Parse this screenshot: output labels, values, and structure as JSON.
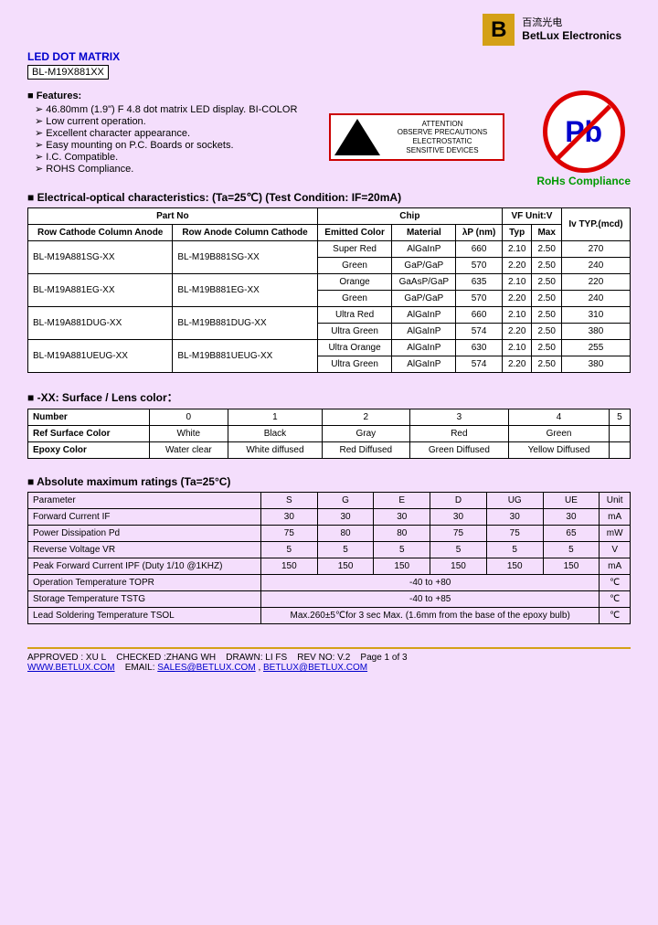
{
  "logo": {
    "cn": "百流光电",
    "en": "BetLux Electronics"
  },
  "title": "LED DOT MATRIX",
  "subtitle": "BL-M19X881XX",
  "features": {
    "label": "Features:",
    "items": [
      "46.80mm (1.9\") F 4.8 dot matrix LED display. BI-COLOR",
      "Low current operation.",
      "Excellent character appearance.",
      "Easy mounting on P.C. Boards or sockets.",
      "I.C. Compatible.",
      "ROHS Compliance."
    ]
  },
  "esd": {
    "title": "ATTENTION",
    "line1": "OBSERVE PRECAUTIONS",
    "line2": "ELECTROSTATIC",
    "line3": "SENSITIVE DEVICES"
  },
  "pb": {
    "symbol": "Pb",
    "label": "RoHs Compliance"
  },
  "table1": {
    "header": "Electrical-optical characteristics: (Ta=25℃) (Test Condition: IF=20mA)",
    "h_partno": "Part No",
    "h_chip": "Chip",
    "h_vf": "VF Unit:V",
    "h_iv": "Iv TYP.(mcd)",
    "h_rowc": "Row Cathode Column Anode",
    "h_rowa": "Row Anode Column Cathode",
    "h_emit": "Emitted Color",
    "h_mat": "Material",
    "h_lp": "λP (nm)",
    "h_typ": "Typ",
    "h_max": "Max",
    "rows": [
      {
        "p1": "BL-M19A881SG-XX",
        "p2": "BL-M19B881SG-XX",
        "c1": "Super Red",
        "m1": "AlGaInP",
        "l1": "660",
        "t1": "2.10",
        "x1": "2.50",
        "i1": "270",
        "c2": "Green",
        "m2": "GaP/GaP",
        "l2": "570",
        "t2": "2.20",
        "x2": "2.50",
        "i2": "240"
      },
      {
        "p1": "BL-M19A881EG-XX",
        "p2": "BL-M19B881EG-XX",
        "c1": "Orange",
        "m1": "GaAsP/GaP",
        "l1": "635",
        "t1": "2.10",
        "x1": "2.50",
        "i1": "220",
        "c2": "Green",
        "m2": "GaP/GaP",
        "l2": "570",
        "t2": "2.20",
        "x2": "2.50",
        "i2": "240"
      },
      {
        "p1": "BL-M19A881DUG-XX",
        "p2": "BL-M19B881DUG-XX",
        "c1": "Ultra Red",
        "m1": "AlGaInP",
        "l1": "660",
        "t1": "2.10",
        "x1": "2.50",
        "i1": "310",
        "c2": "Ultra Green",
        "m2": "AlGaInP",
        "l2": "574",
        "t2": "2.20",
        "x2": "2.50",
        "i2": "380"
      },
      {
        "p1": "BL-M19A881UEUG-XX",
        "p2": "BL-M19B881UEUG-XX",
        "c1": "Ultra Orange",
        "m1": "AlGaInP",
        "l1": "630",
        "t1": "2.10",
        "x1": "2.50",
        "i1": "255",
        "c2": "Ultra Green",
        "m2": "AlGaInP",
        "l2": "574",
        "t2": "2.20",
        "x2": "2.50",
        "i2": "380"
      }
    ]
  },
  "table2": {
    "header": "-XX: Surface / Lens color：",
    "h_num": "Number",
    "h_ref": "Ref Surface Color",
    "h_epoxy": "Epoxy Color",
    "nums": [
      "0",
      "1",
      "2",
      "3",
      "4",
      "5"
    ],
    "refs": [
      "White",
      "Black",
      "Gray",
      "Red",
      "Green",
      ""
    ],
    "epoxy": [
      "Water clear",
      "White diffused",
      "Red Diffused",
      "Green Diffused",
      "Yellow Diffused",
      ""
    ]
  },
  "table3": {
    "header": "Absolute maximum ratings (Ta=25°C)",
    "h_param": "Parameter",
    "cols": [
      "S",
      "G",
      "E",
      "D",
      "UG",
      "UE"
    ],
    "h_unit": "Unit",
    "rows": [
      {
        "p": "Forward Current IF",
        "v": [
          "30",
          "30",
          "30",
          "30",
          "30",
          "30"
        ],
        "u": "mA"
      },
      {
        "p": "Power Dissipation Pd",
        "v": [
          "75",
          "80",
          "80",
          "75",
          "75",
          "65"
        ],
        "u": "mW"
      },
      {
        "p": "Reverse Voltage VR",
        "v": [
          "5",
          "5",
          "5",
          "5",
          "5",
          "5"
        ],
        "u": "V"
      },
      {
        "p": "Peak Forward Current IPF (Duty 1/10 @1KHZ)",
        "v": [
          "150",
          "150",
          "150",
          "150",
          "150",
          "150"
        ],
        "u": "mA"
      }
    ],
    "opT": {
      "p": "Operation Temperature TOPR",
      "v": "-40 to +80",
      "u": "℃"
    },
    "stT": {
      "p": "Storage Temperature TSTG",
      "v": "-40 to +85",
      "u": "℃"
    },
    "ldT": {
      "p": "Lead Soldering Temperature TSOL",
      "v": "Max.260±5℃for 3 sec Max. (1.6mm from the base of the epoxy bulb)",
      "u": "℃"
    }
  },
  "footer": {
    "line1_a": "APPROVED : XU L",
    "line1_b": "CHECKED :ZHANG WH",
    "line1_c": "DRAWN: LI FS",
    "line1_d": "REV NO: V.2",
    "line1_e": "Page 1 of 3",
    "link1": "WWW.BETLUX.COM",
    "email_label": "EMAIL:",
    "email1": "SALES@BETLUX.COM",
    "email2": "BETLUX@BETLUX.COM"
  }
}
